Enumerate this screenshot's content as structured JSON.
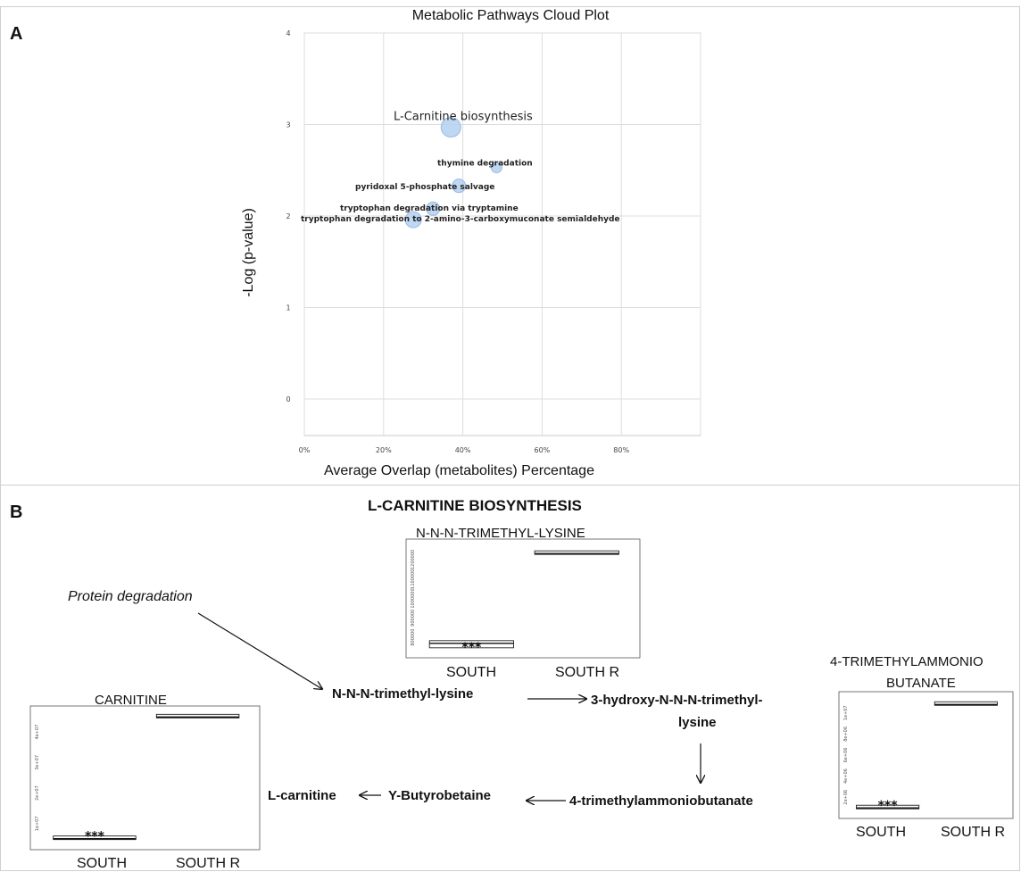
{
  "panel_a": {
    "letter": "A",
    "chart_data": {
      "type": "scatter",
      "title": "Metabolic Pathways Cloud Plot",
      "xlabel": "Average Overlap (metabolites) Percentage",
      "ylabel": "-Log (p-value)",
      "xlim": [
        0,
        100
      ],
      "ylim": [
        -0.4,
        4
      ],
      "x_ticks": [
        0,
        20,
        40,
        60,
        80
      ],
      "x_tick_labels": [
        "0%",
        "20%",
        "40%",
        "60%",
        "80%"
      ],
      "y_ticks": [
        0,
        1,
        2,
        3,
        4
      ],
      "y_tick_labels": [
        "0",
        "1",
        "2",
        "3",
        "4"
      ],
      "grid": true,
      "points": [
        {
          "label": "L-Carnitine biosynthesis",
          "x": 37,
          "y": 2.97,
          "size": 2.2
        },
        {
          "label": "thymine degradation",
          "x": 48.5,
          "y": 2.53,
          "size": 1.2
        },
        {
          "label": "pyridoxal 5-phosphate salvage",
          "x": 39,
          "y": 2.33,
          "size": 1.5
        },
        {
          "label": "tryptophan degradation via tryptamine",
          "x": 32.5,
          "y": 2.08,
          "size": 1.5
        },
        {
          "label": "tryptophan degradation to 2-amino-3-carboxymuconate semialdehyde",
          "x": 27.5,
          "y": 1.96,
          "size": 1.8
        }
      ]
    }
  },
  "panel_b": {
    "letter": "B",
    "title": "L-CARNITINE BIOSYNTHESIS",
    "protein_degradation": "Protein degradation",
    "nodes": {
      "trimethyl_lysine": "N-N-N-trimethyl-lysine",
      "hydroxy_line1": "3-hydroxy-N-N-N-trimethyl-",
      "hydroxy_line2": "lysine",
      "tmab": "4-trimethylammoniobutanate",
      "butyrobetaine": "Υ-Butyrobetaine",
      "carnitine": "L-carnitine"
    },
    "boxplots": [
      {
        "title": "N-N-N-TRIMETHYL-LYSINE",
        "chart_data": {
          "type": "box",
          "categories": [
            "SOUTH",
            "SOUTH R"
          ],
          "relative_values": [
            0.07,
            0.93
          ],
          "annotation": "***",
          "tick_labels": [
            "800000",
            "900000",
            "1000000",
            "1100000",
            "1200000"
          ]
        }
      },
      {
        "title_line1": "4-TRIMETHYLAMMONIO",
        "title_line2": "BUTANATE",
        "chart_data": {
          "type": "box",
          "categories": [
            "SOUTH",
            "SOUTH R"
          ],
          "relative_values": [
            0.03,
            0.95
          ],
          "annotation": "***",
          "tick_labels": [
            "2e+06",
            "4e+06",
            "6e+06",
            "8e+06",
            "1e+07"
          ]
        }
      },
      {
        "title": "CARNITINE",
        "chart_data": {
          "type": "box",
          "categories": [
            "SOUTH",
            "SOUTH R"
          ],
          "relative_values": [
            0.03,
            0.97
          ],
          "annotation": "***",
          "tick_labels": [
            "1e+07",
            "2e+07",
            "3e+07",
            "4e+07"
          ]
        }
      }
    ]
  },
  "colors": {
    "bubble_fill": "#b8d3f2",
    "bubble_stroke": "#8fb4e3",
    "grid": "#dddddd",
    "frame": "#c8c8c8"
  }
}
